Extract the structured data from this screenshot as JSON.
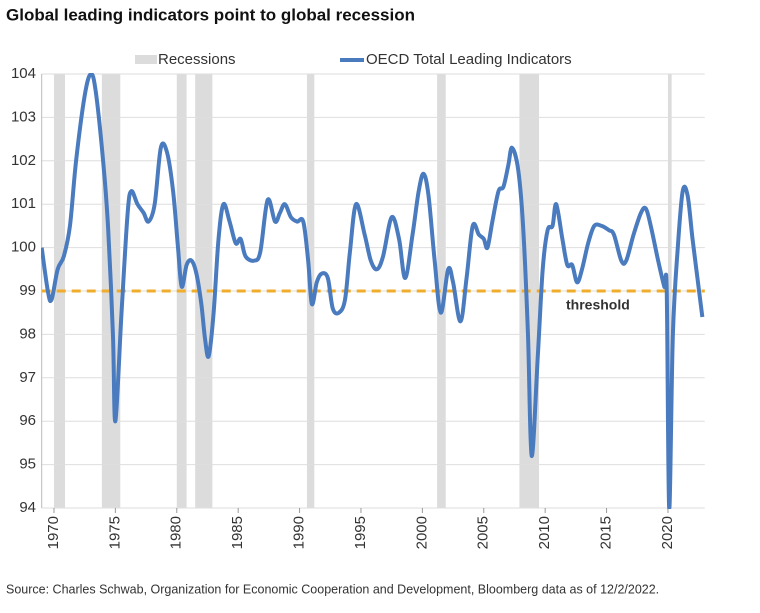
{
  "chart_data": {
    "type": "line",
    "title": "Global leading indicators point to global recession",
    "source": "Source: Charles Schwab, Organization for Economic Cooperation and Development, Bloomberg data as of 12/2/2022.",
    "xlim": [
      1969,
      2023
    ],
    "xticks": [
      1970,
      1975,
      1980,
      1985,
      1990,
      1995,
      2000,
      2005,
      2010,
      2015,
      2020
    ],
    "ylim": [
      94,
      104
    ],
    "yticks": [
      94,
      95,
      96,
      97,
      98,
      99,
      100,
      101,
      102,
      103,
      104
    ],
    "grid": true,
    "recessions": {
      "name": "Recessions",
      "color": "#dcdcdc",
      "periods": [
        [
          1970,
          1970.9
        ],
        [
          1973.9,
          1975.4
        ],
        [
          1980,
          1980.8
        ],
        [
          1981.5,
          1982.9
        ],
        [
          1990.6,
          1991.2
        ],
        [
          2001.2,
          2001.9
        ],
        [
          2007.9,
          2009.5
        ],
        [
          2020,
          2020.3
        ]
      ]
    },
    "threshold": {
      "value": 99,
      "label": "threshold",
      "color": "#f0ad2b"
    },
    "x": [
      1969.0,
      1969.5,
      1969.8,
      1970.3,
      1970.8,
      1971.3,
      1971.8,
      1972.5,
      1973.0,
      1973.4,
      1974.0,
      1974.4,
      1974.8,
      1975.0,
      1975.5,
      1976.0,
      1976.3,
      1976.8,
      1977.3,
      1977.7,
      1978.2,
      1978.7,
      1979.2,
      1979.7,
      1980.1,
      1980.4,
      1980.8,
      1981.2,
      1981.6,
      1982.0,
      1982.3,
      1982.6,
      1983.0,
      1983.4,
      1983.8,
      1984.3,
      1984.8,
      1985.2,
      1985.6,
      1986.3,
      1986.8,
      1987.4,
      1988.0,
      1988.4,
      1988.8,
      1989.3,
      1989.8,
      1990.3,
      1990.7,
      1991.0,
      1991.4,
      1991.8,
      1992.3,
      1992.7,
      1993.2,
      1993.7,
      1994.1,
      1994.6,
      1995.3,
      1995.8,
      1996.3,
      1996.8,
      1997.5,
      1998.1,
      1998.6,
      1999.2,
      1999.7,
      2000.1,
      2000.5,
      2001.0,
      2001.5,
      2002.1,
      2002.5,
      2003.1,
      2003.6,
      2004.1,
      2004.6,
      2005.0,
      2005.3,
      2005.7,
      2006.2,
      2006.6,
      2007.0,
      2007.3,
      2007.8,
      2008.2,
      2008.6,
      2008.9,
      2009.4,
      2009.8,
      2010.2,
      2010.6,
      2010.9,
      2011.4,
      2011.8,
      2012.2,
      2012.6,
      2013.0,
      2013.5,
      2014.0,
      2014.6,
      2015.2,
      2015.6,
      2016.2,
      2016.6,
      2017.2,
      2017.8,
      2018.2,
      2018.6,
      2019.2,
      2019.7,
      2019.9,
      2020.1,
      2020.4,
      2020.8,
      2021.2,
      2021.6,
      2022.0,
      2022.4,
      2022.8
    ],
    "series": [
      {
        "name": "OECD Total Leading Indicators",
        "color": "#4a7bbf",
        "values": [
          100.0,
          99.0,
          98.8,
          99.5,
          99.8,
          100.5,
          102.0,
          103.5,
          104.0,
          103.6,
          102.0,
          100.5,
          98.0,
          96.0,
          98.5,
          100.8,
          101.3,
          101.0,
          100.8,
          100.6,
          101.0,
          102.3,
          102.2,
          101.3,
          100.0,
          99.1,
          99.6,
          99.7,
          99.4,
          98.7,
          97.9,
          97.5,
          98.5,
          100.2,
          101.0,
          100.6,
          100.1,
          100.2,
          99.8,
          99.7,
          99.9,
          101.1,
          100.6,
          100.8,
          101.0,
          100.7,
          100.6,
          100.6,
          99.7,
          98.7,
          99.2,
          99.4,
          99.3,
          98.6,
          98.5,
          98.8,
          99.9,
          101.0,
          100.3,
          99.7,
          99.5,
          99.8,
          100.7,
          100.2,
          99.3,
          100.3,
          101.3,
          101.7,
          101.2,
          99.7,
          98.5,
          99.5,
          99.2,
          98.3,
          99.3,
          100.5,
          100.3,
          100.2,
          100.0,
          100.6,
          101.3,
          101.4,
          101.9,
          102.3,
          101.8,
          100.5,
          98.0,
          95.2,
          97.5,
          99.5,
          100.4,
          100.5,
          101.0,
          100.2,
          99.6,
          99.6,
          99.2,
          99.5,
          100.1,
          100.5,
          100.5,
          100.4,
          100.3,
          99.7,
          99.7,
          100.3,
          100.8,
          100.9,
          100.5,
          99.7,
          99.1,
          99.0,
          94.0,
          98.0,
          100.0,
          101.3,
          101.2,
          100.2,
          99.3,
          98.4
        ]
      }
    ]
  }
}
